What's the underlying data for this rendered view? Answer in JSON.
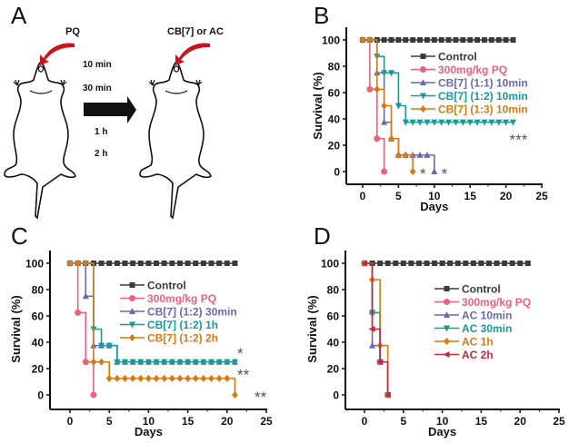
{
  "panels": {
    "A": {
      "letter": "A",
      "injection_left_label": "PQ",
      "injection_right_label": "CB[7] or AC",
      "time_labels": [
        "10 min",
        "30 min",
        "1 h",
        "2 h"
      ]
    }
  },
  "colors": {
    "control": "#3a3a3a",
    "pq": "#f0607a",
    "blue": "#6a6aa8",
    "teal": "#1a9a96",
    "orange": "#d87a14",
    "darkred": "#c8283a",
    "arrow_red": "#c8141e",
    "star": "#555555"
  },
  "chart_data": [
    {
      "panel": "B",
      "type": "line",
      "step": true,
      "xlabel": "Days",
      "ylabel": "Survival (%)",
      "xlim": [
        -2.5,
        25
      ],
      "ylim": [
        -10,
        110
      ],
      "xticks": [
        0,
        5,
        10,
        15,
        20,
        25
      ],
      "yticks": [
        0,
        20,
        40,
        60,
        80,
        100
      ],
      "legend_position": "right-center",
      "series": [
        {
          "name": "Control",
          "color_key": "control",
          "marker": "square",
          "x": [
            0,
            1,
            2,
            3,
            4,
            5,
            6,
            7,
            8,
            9,
            10,
            11,
            12,
            13,
            14,
            15,
            16,
            17,
            18,
            19,
            20,
            21
          ],
          "y": [
            100,
            100,
            100,
            100,
            100,
            100,
            100,
            100,
            100,
            100,
            100,
            100,
            100,
            100,
            100,
            100,
            100,
            100,
            100,
            100,
            100,
            100
          ]
        },
        {
          "name": "300mg/kg PQ",
          "color_key": "pq",
          "marker": "circle",
          "x": [
            0,
            1,
            2,
            3
          ],
          "y": [
            100,
            62.5,
            25,
            0
          ]
        },
        {
          "name": "CB[7] (1:1) 10min",
          "color_key": "blue",
          "marker": "triangle-up",
          "x": [
            0,
            1,
            2,
            3,
            4,
            5,
            6,
            7,
            8,
            9,
            10
          ],
          "y": [
            100,
            100,
            75,
            37.5,
            25,
            12.5,
            12.5,
            12.5,
            12.5,
            12.5,
            0
          ]
        },
        {
          "name": "CB[7] (1:2) 10min",
          "color_key": "teal",
          "marker": "triangle-down",
          "x": [
            0,
            1,
            2,
            3,
            4,
            5,
            6,
            7,
            8,
            9,
            10,
            11,
            12,
            13,
            14,
            15,
            16,
            17,
            18,
            19,
            20,
            21
          ],
          "y": [
            100,
            100,
            87.5,
            75,
            75,
            50,
            37.5,
            37.5,
            37.5,
            37.5,
            37.5,
            37.5,
            37.5,
            37.5,
            37.5,
            37.5,
            37.5,
            37.5,
            37.5,
            37.5,
            37.5,
            37.5
          ]
        },
        {
          "name": "CB[7] (1:3) 10min",
          "color_key": "orange",
          "marker": "diamond",
          "x": [
            0,
            1,
            2,
            3,
            4,
            5,
            6,
            7
          ],
          "y": [
            100,
            100,
            62.5,
            50,
            25,
            12.5,
            12.5,
            0
          ]
        }
      ],
      "annotations": [
        {
          "text": "***",
          "x": 20.5,
          "y": 26
        },
        {
          "text": "*",
          "x": 8,
          "y": 0
        },
        {
          "text": "*",
          "x": 11,
          "y": 0
        }
      ]
    },
    {
      "panel": "C",
      "type": "line",
      "step": true,
      "xlabel": "Days",
      "ylabel": "Survival (%)",
      "xlim": [
        -2.5,
        25
      ],
      "ylim": [
        -10,
        110
      ],
      "xticks": [
        0,
        5,
        10,
        15,
        20,
        25
      ],
      "yticks": [
        0,
        20,
        40,
        60,
        80,
        100
      ],
      "legend_position": "right-center",
      "series": [
        {
          "name": "Control",
          "color_key": "control",
          "marker": "square",
          "x": [
            0,
            1,
            2,
            3,
            4,
            5,
            6,
            7,
            8,
            9,
            10,
            11,
            12,
            13,
            14,
            15,
            16,
            17,
            18,
            19,
            20,
            21
          ],
          "y": [
            100,
            100,
            100,
            100,
            100,
            100,
            100,
            100,
            100,
            100,
            100,
            100,
            100,
            100,
            100,
            100,
            100,
            100,
            100,
            100,
            100,
            100
          ]
        },
        {
          "name": "300mg/kg PQ",
          "color_key": "pq",
          "marker": "circle",
          "x": [
            0,
            1,
            2,
            3
          ],
          "y": [
            100,
            62.5,
            25,
            0
          ]
        },
        {
          "name": "CB[7] (1:2) 30min",
          "color_key": "blue",
          "marker": "triangle-up",
          "x": [
            0,
            1,
            2,
            3,
            4,
            5,
            6,
            7,
            8,
            9,
            10,
            11,
            12,
            13,
            14,
            15,
            16,
            17,
            18,
            19,
            20,
            21
          ],
          "y": [
            100,
            100,
            75,
            37.5,
            37.5,
            37.5,
            25,
            25,
            25,
            25,
            25,
            25,
            25,
            25,
            25,
            25,
            25,
            25,
            25,
            25,
            25,
            25
          ]
        },
        {
          "name": "CB[7] (1:2) 1h",
          "color_key": "teal",
          "marker": "triangle-down",
          "x": [
            0,
            1,
            2,
            3,
            4,
            5,
            6,
            7,
            8,
            9,
            10,
            11,
            12,
            13,
            14,
            15,
            16,
            17,
            18,
            19,
            20,
            21
          ],
          "y": [
            100,
            100,
            100,
            50,
            37.5,
            37.5,
            25,
            25,
            25,
            25,
            25,
            25,
            25,
            25,
            25,
            25,
            25,
            25,
            25,
            25,
            25,
            25
          ]
        },
        {
          "name": "CB[7] (1:2) 2h",
          "color_key": "orange",
          "marker": "diamond",
          "x": [
            0,
            1,
            2,
            3,
            4,
            5,
            6,
            7,
            8,
            9,
            10,
            11,
            12,
            13,
            14,
            15,
            16,
            17,
            18,
            19,
            20,
            21
          ],
          "y": [
            100,
            100,
            100,
            25,
            25,
            12.5,
            12.5,
            12.5,
            12.5,
            12.5,
            12.5,
            12.5,
            12.5,
            12.5,
            12.5,
            12.5,
            12.5,
            12.5,
            12.5,
            12.5,
            12.5,
            0
          ]
        }
      ],
      "annotations": [
        {
          "text": "*",
          "x": 21.3,
          "y": 33
        },
        {
          "text": "**",
          "x": 21.3,
          "y": 17
        },
        {
          "text": "**",
          "x": 23.5,
          "y": 0
        }
      ]
    },
    {
      "panel": "D",
      "type": "line",
      "step": true,
      "xlabel": "Days",
      "ylabel": "Survival (%)",
      "xlim": [
        -2.5,
        25
      ],
      "ylim": [
        -10,
        110
      ],
      "xticks": [
        0,
        5,
        10,
        15,
        20,
        25
      ],
      "yticks": [
        0,
        20,
        40,
        60,
        80,
        100
      ],
      "legend_position": "right-center",
      "series": [
        {
          "name": "Control",
          "color_key": "control",
          "marker": "square",
          "x": [
            0,
            1,
            2,
            3,
            4,
            5,
            6,
            7,
            8,
            9,
            10,
            11,
            12,
            13,
            14,
            15,
            16,
            17,
            18,
            19,
            20,
            21
          ],
          "y": [
            100,
            100,
            100,
            100,
            100,
            100,
            100,
            100,
            100,
            100,
            100,
            100,
            100,
            100,
            100,
            100,
            100,
            100,
            100,
            100,
            100,
            100
          ]
        },
        {
          "name": "300mg/kg PQ",
          "color_key": "pq",
          "marker": "circle",
          "x": [
            0,
            1,
            2,
            3
          ],
          "y": [
            100,
            62.5,
            25,
            0
          ]
        },
        {
          "name": "AC 10min",
          "color_key": "blue",
          "marker": "triangle-up",
          "x": [
            0,
            1,
            2,
            3
          ],
          "y": [
            100,
            37.5,
            25,
            0
          ]
        },
        {
          "name": "AC 30min",
          "color_key": "teal",
          "marker": "triangle-down",
          "x": [
            0,
            1,
            2,
            3
          ],
          "y": [
            100,
            62.5,
            25,
            0
          ]
        },
        {
          "name": "AC 1h",
          "color_key": "orange",
          "marker": "diamond",
          "x": [
            0,
            1,
            2,
            3
          ],
          "y": [
            100,
            87.5,
            37.5,
            0
          ]
        },
        {
          "name": "AC 2h",
          "color_key": "darkred",
          "marker": "triangle-left",
          "x": [
            0,
            1,
            2,
            3
          ],
          "y": [
            100,
            50,
            25,
            0
          ]
        }
      ],
      "annotations": []
    }
  ]
}
